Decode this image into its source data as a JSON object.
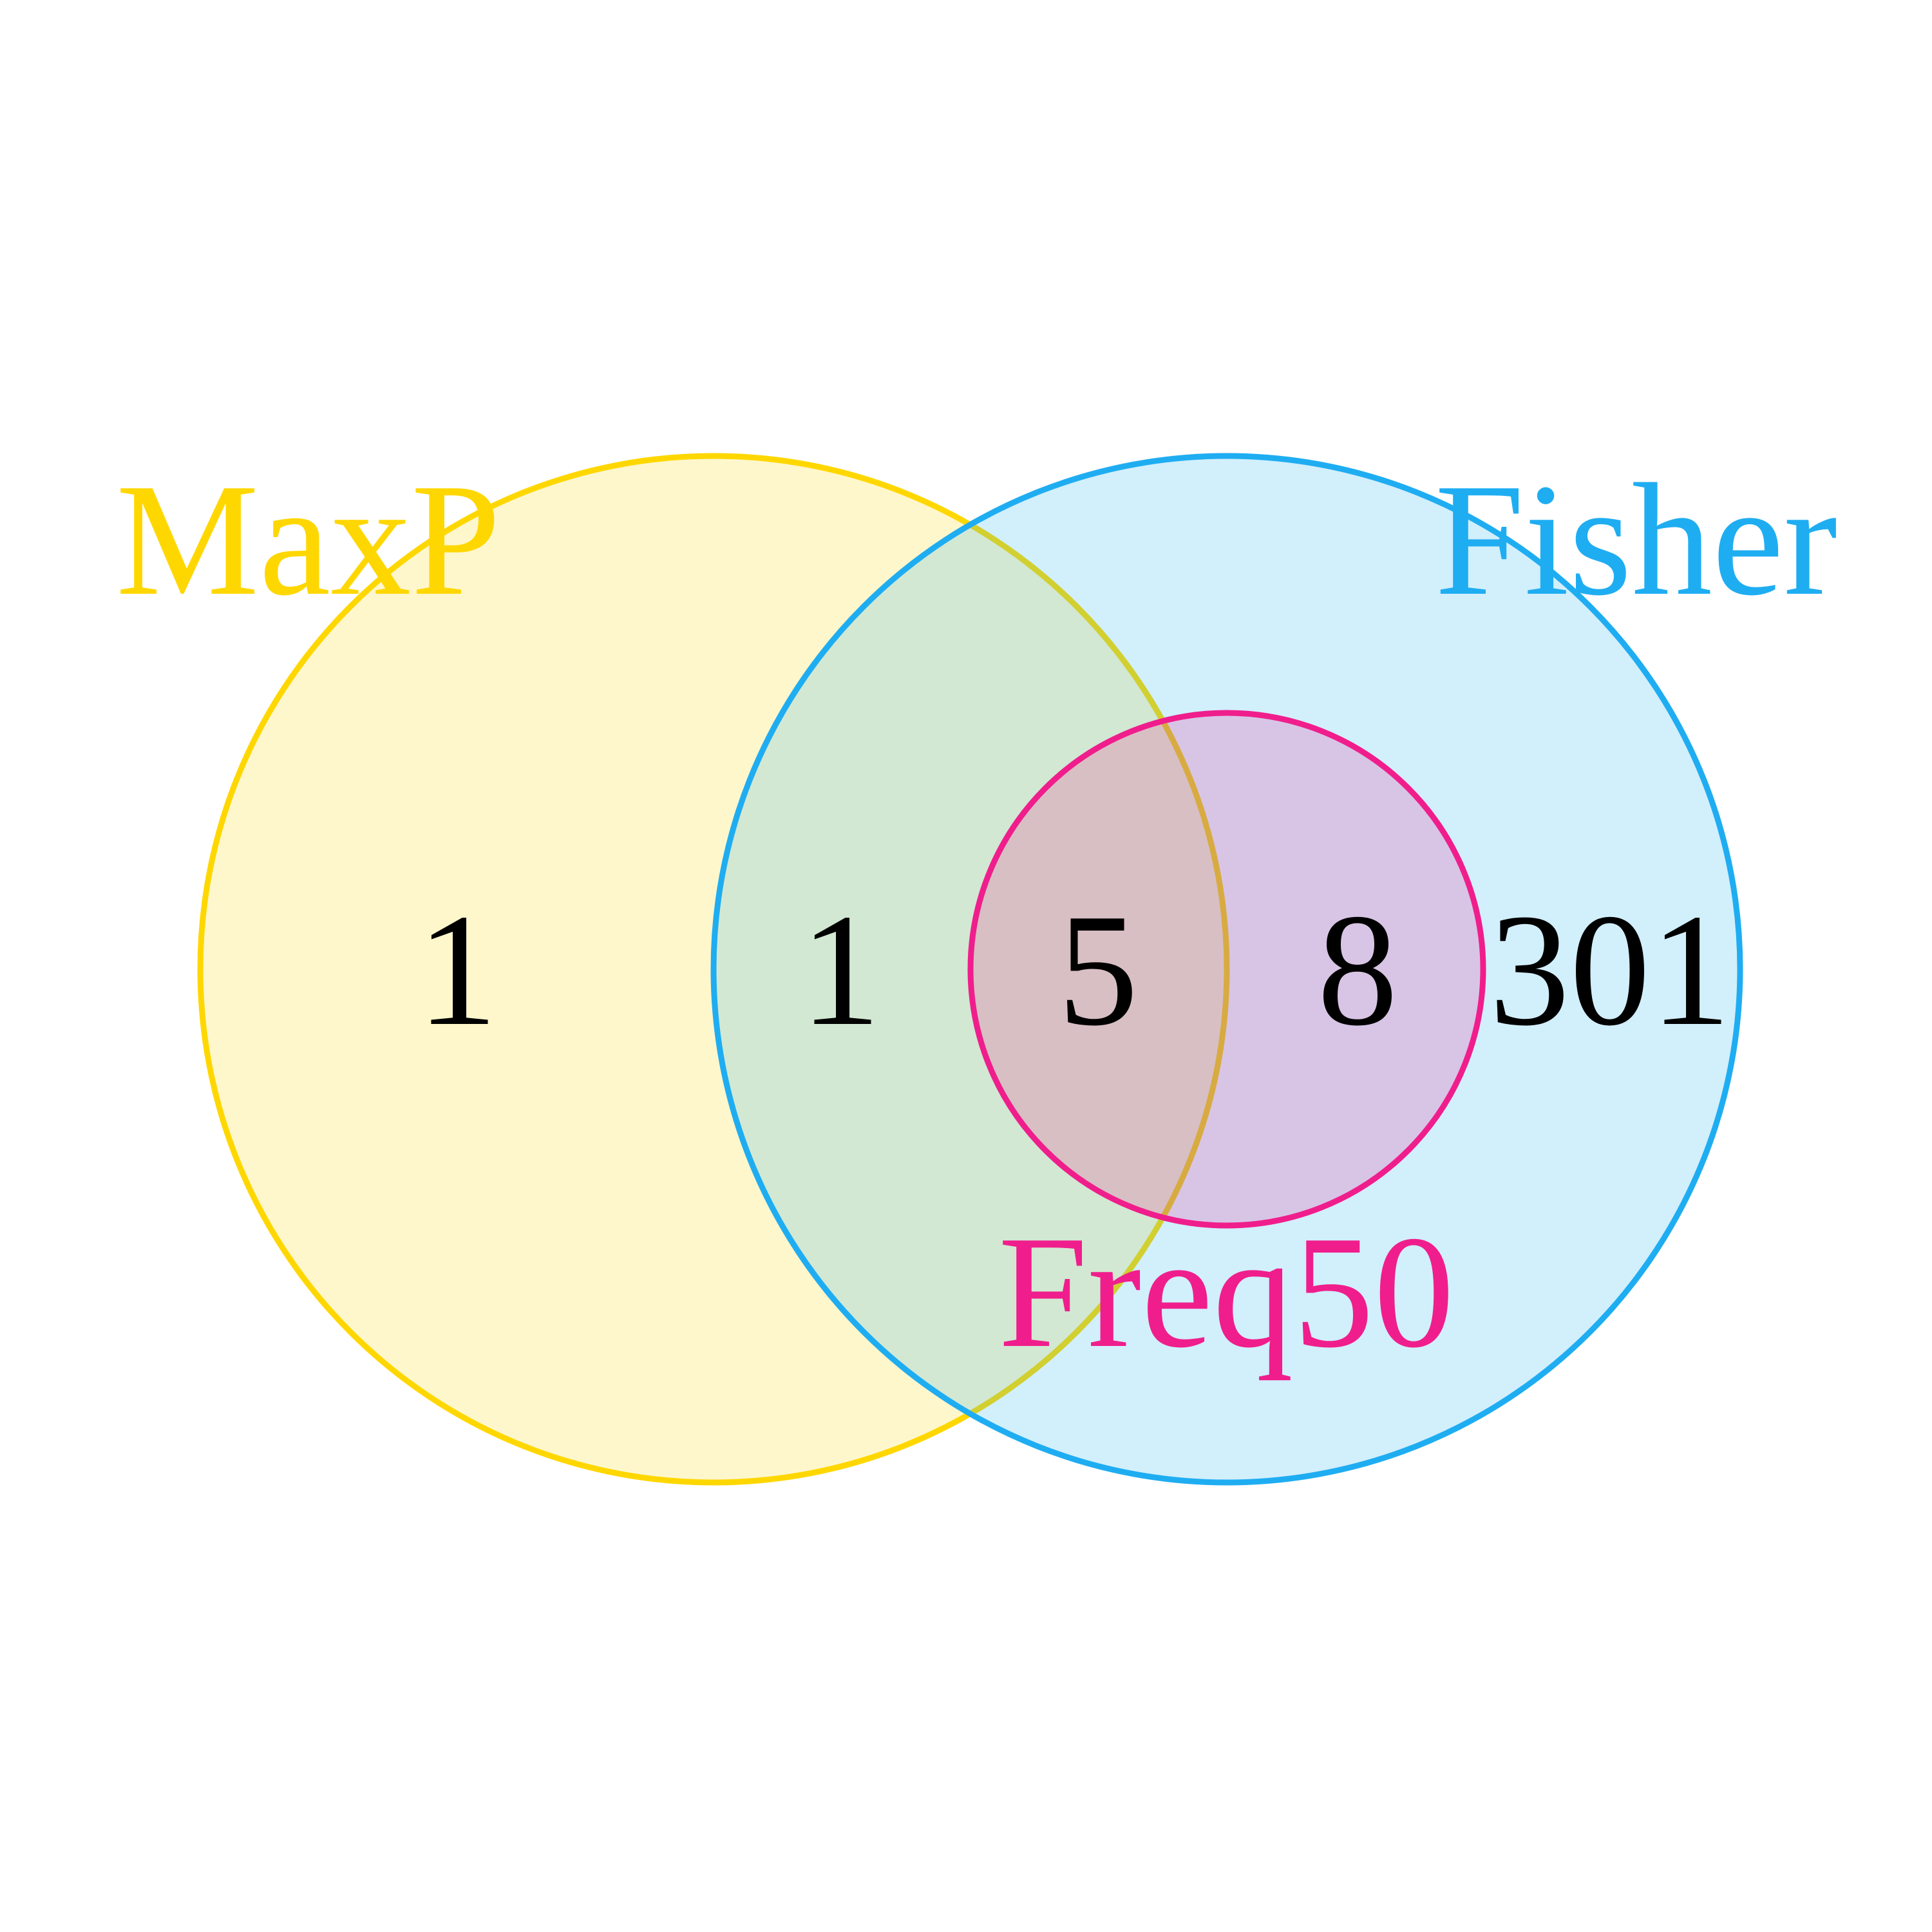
{
  "sets": [
    {
      "id": "maxp",
      "label": "MaxP",
      "stroke": "#FFD700",
      "fill": "#FFD700",
      "fill_opacity": 0.2
    },
    {
      "id": "fisher",
      "label": "Fisher",
      "stroke": "#1FADF2",
      "fill": "#1FADF2",
      "fill_opacity": 0.2
    },
    {
      "id": "freq50",
      "label": "Freq50",
      "stroke": "#F01E8C",
      "fill": "#F01E8C",
      "fill_opacity": 0.2
    }
  ],
  "regions": [
    {
      "sets": [
        "MaxP"
      ],
      "count": "1"
    },
    {
      "sets": [
        "MaxP",
        "Fisher"
      ],
      "count": "1"
    },
    {
      "sets": [
        "MaxP",
        "Fisher",
        "Freq50"
      ],
      "count": "5"
    },
    {
      "sets": [
        "Fisher",
        "Freq50"
      ],
      "count": "8"
    },
    {
      "sets": [
        "Fisher"
      ],
      "count": "301"
    }
  ]
}
